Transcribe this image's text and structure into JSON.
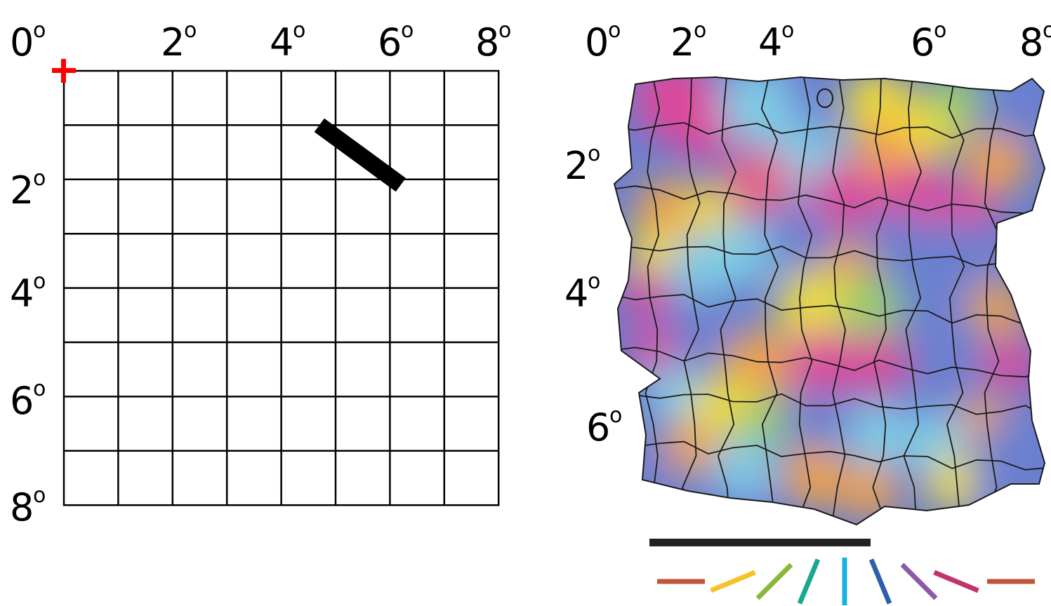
{
  "left_panel": {
    "grid_rows": 8,
    "grid_cols": 8,
    "top_labels": [
      {
        "value": "0",
        "unit": "o",
        "at_deg": 0
      },
      {
        "value": "2",
        "unit": "o",
        "at_deg": 2
      },
      {
        "value": "4",
        "unit": "o",
        "at_deg": 4
      },
      {
        "value": "6",
        "unit": "o",
        "at_deg": 6
      },
      {
        "value": "8",
        "unit": "o",
        "at_deg": 8
      }
    ],
    "side_labels": [
      {
        "value": "2",
        "unit": "o",
        "at_deg": 2
      },
      {
        "value": "4",
        "unit": "o",
        "at_deg": 4
      },
      {
        "value": "6",
        "unit": "o",
        "at_deg": 6
      },
      {
        "value": "8",
        "unit": "o",
        "at_deg": 8
      }
    ],
    "fixation_color": "#ff0000",
    "stimulus_bar": {
      "color": "#000000",
      "from_deg": [
        4.7,
        1.0
      ],
      "to_deg": [
        6.2,
        2.1
      ]
    }
  },
  "right_panel": {
    "top_labels": [
      {
        "value": "0",
        "unit": "o"
      },
      {
        "value": "2",
        "unit": "o"
      },
      {
        "value": "4",
        "unit": "o"
      },
      {
        "value": "6",
        "unit": "o"
      },
      {
        "value": "8",
        "unit": "o"
      }
    ],
    "side_labels": [
      {
        "value": "2",
        "unit": "o"
      },
      {
        "value": "4",
        "unit": "o"
      },
      {
        "value": "6",
        "unit": "o"
      }
    ],
    "map_colors": [
      "#6a7fd0",
      "#e0479a",
      "#f5e230",
      "#f7a440",
      "#7fd0e6",
      "#9ad06a",
      "#ee5d85"
    ],
    "scale_bar_color": "#222222",
    "orientation_key": [
      {
        "angle_deg": 0,
        "color": "#c0553a"
      },
      {
        "angle_deg": 22.5,
        "color": "#f5c22a"
      },
      {
        "angle_deg": 45,
        "color": "#8bb83a"
      },
      {
        "angle_deg": 67.5,
        "color": "#17a88f"
      },
      {
        "angle_deg": 90,
        "color": "#1ab0e0"
      },
      {
        "angle_deg": 112.5,
        "color": "#2e5fae"
      },
      {
        "angle_deg": 135,
        "color": "#8a5aa8"
      },
      {
        "angle_deg": 157.5,
        "color": "#c0336e"
      },
      {
        "angle_deg": 180,
        "color": "#c0553a"
      }
    ]
  }
}
